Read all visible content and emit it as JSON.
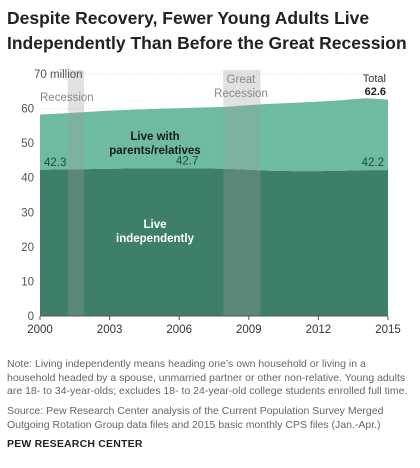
{
  "title": "Despite Recovery, Fewer Young Adults Live Independently Than Before the Great Recession",
  "chart_data": {
    "type": "area",
    "stacked": true,
    "x": [
      2000,
      2001,
      2002,
      2003,
      2004,
      2005,
      2006,
      2007,
      2008,
      2009,
      2010,
      2011,
      2012,
      2013,
      2014,
      2015
    ],
    "series": [
      {
        "name": "Live independently",
        "values": [
          42.3,
          42.4,
          42.5,
          42.6,
          42.7,
          42.7,
          42.7,
          42.7,
          42.6,
          42.3,
          42.0,
          41.9,
          41.9,
          42.0,
          42.2,
          42.2
        ],
        "color": "#3e7f6b",
        "label": "Live independently"
      },
      {
        "name": "Live with parents/relatives",
        "values": [
          16.0,
          16.2,
          16.5,
          16.8,
          17.0,
          17.2,
          17.4,
          17.6,
          17.9,
          18.7,
          19.4,
          19.8,
          20.1,
          20.4,
          20.8,
          20.4
        ],
        "color": "#6ebba0",
        "label": "Live with parents/relatives"
      }
    ],
    "total_label": "Total",
    "total_value": "62.6",
    "value_labels": [
      {
        "x": 2000,
        "text": "42.3"
      },
      {
        "x": 2007,
        "text": "42.7"
      },
      {
        "x": 2015,
        "text": "42.2"
      }
    ],
    "recessions": [
      {
        "label": "Recession",
        "start": 2001.2,
        "end": 2001.9
      },
      {
        "label": "Great Recession",
        "start": 2007.9,
        "end": 2009.5
      }
    ],
    "y_unit_label": "70 million",
    "yticks": [
      0,
      10,
      20,
      30,
      40,
      50,
      60,
      70
    ],
    "xticks": [
      2000,
      2003,
      2006,
      2009,
      2012,
      2015
    ],
    "ylim": [
      0,
      70
    ],
    "grid": true
  },
  "note": "Note: Living independently means heading one’s own household or living in a household headed by a spouse, unmarried partner or other non-relative. Young adults are 18- to 34-year-olds; excludes 18- to 24-year-old college students enrolled full time.",
  "source": "Source: Pew Research Center analysis of the Current Population Survey Merged Outgoing Rotation Group data files and 2015 basic monthly CPS files (Jan.-Apr.)",
  "brand": "PEW RESEARCH CENTER"
}
